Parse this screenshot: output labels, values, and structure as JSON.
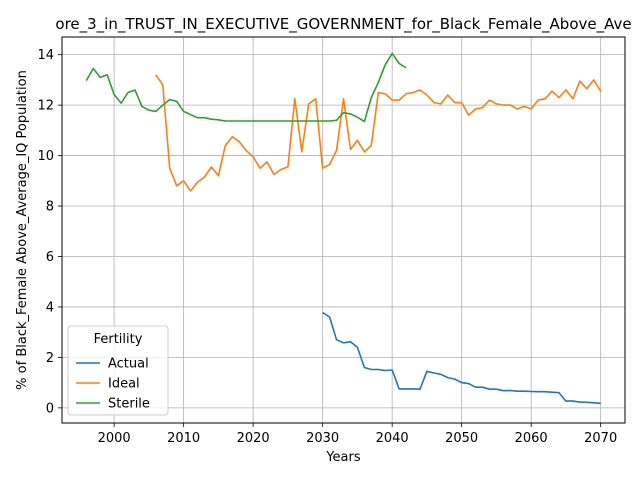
{
  "chart_data": {
    "type": "line",
    "title": "ore_3_in_TRUST_IN_EXECUTIVE_GOVERNMENT_for_Black_Female_Above_Ave",
    "xlabel": "Years",
    "ylabel": "% of Black_Female Above_Average_IQ Population",
    "xlim": [
      1992.5,
      2073.5
    ],
    "ylim": [
      -0.6,
      14.7
    ],
    "xticks": [
      2000,
      2010,
      2020,
      2030,
      2040,
      2050,
      2060,
      2070
    ],
    "yticks": [
      0,
      2,
      4,
      6,
      8,
      10,
      12,
      14
    ],
    "grid": true,
    "legend": {
      "title": "Fertility",
      "placement": "lower-left"
    },
    "colors": {
      "Actual": "#1f77b4",
      "Ideal": "#ff7f0e",
      "Sterile": "#2ca02c"
    },
    "series": [
      {
        "name": "Actual",
        "x": [
          2030,
          2031,
          2032,
          2033,
          2034,
          2035,
          2036,
          2037,
          2038,
          2039,
          2040,
          2041,
          2042,
          2043,
          2044,
          2045,
          2046,
          2047,
          2048,
          2049,
          2050,
          2051,
          2052,
          2053,
          2054,
          2055,
          2056,
          2057,
          2058,
          2059,
          2060,
          2061,
          2062,
          2063,
          2064,
          2065,
          2066,
          2067,
          2068,
          2069,
          2070
        ],
        "values": [
          3.78,
          3.6,
          2.7,
          2.58,
          2.62,
          2.4,
          1.6,
          1.52,
          1.52,
          1.48,
          1.5,
          0.75,
          0.75,
          0.75,
          0.74,
          1.45,
          1.38,
          1.33,
          1.2,
          1.14,
          1.0,
          0.96,
          0.82,
          0.82,
          0.74,
          0.74,
          0.68,
          0.69,
          0.66,
          0.66,
          0.65,
          0.64,
          0.64,
          0.62,
          0.6,
          0.27,
          0.27,
          0.23,
          0.22,
          0.2,
          0.18
        ]
      },
      {
        "name": "Ideal",
        "x": [
          2006,
          2007,
          2008,
          2009,
          2010,
          2011,
          2012,
          2013,
          2014,
          2015,
          2016,
          2017,
          2018,
          2019,
          2020,
          2021,
          2022,
          2023,
          2024,
          2025,
          2026,
          2027,
          2028,
          2029,
          2030,
          2031,
          2032,
          2033,
          2034,
          2035,
          2036,
          2037,
          2038,
          2039,
          2040,
          2041,
          2042,
          2043,
          2044,
          2045,
          2046,
          2047,
          2048,
          2049,
          2050,
          2051,
          2052,
          2053,
          2054,
          2055,
          2056,
          2057,
          2058,
          2059,
          2060,
          2061,
          2062,
          2063,
          2064,
          2065,
          2066,
          2067,
          2068,
          2069,
          2070
        ],
        "values": [
          13.2,
          12.8,
          9.5,
          8.8,
          9.0,
          8.6,
          8.95,
          9.15,
          9.55,
          9.2,
          10.4,
          10.75,
          10.55,
          10.2,
          9.95,
          9.5,
          9.75,
          9.25,
          9.45,
          9.55,
          12.25,
          10.15,
          12.05,
          12.25,
          9.5,
          9.65,
          10.2,
          12.25,
          10.25,
          10.6,
          10.15,
          10.4,
          12.5,
          12.45,
          12.2,
          12.2,
          12.45,
          12.5,
          12.6,
          12.4,
          12.1,
          12.05,
          12.4,
          12.1,
          12.1,
          11.6,
          11.85,
          11.9,
          12.2,
          12.05,
          12.0,
          12.0,
          11.85,
          11.95,
          11.85,
          12.2,
          12.25,
          12.55,
          12.3,
          12.6,
          12.25,
          12.95,
          12.65,
          13.0,
          12.55
        ]
      },
      {
        "name": "Sterile",
        "x": [
          1996,
          1997,
          1998,
          1999,
          2000,
          2001,
          2002,
          2003,
          2004,
          2005,
          2006,
          2007,
          2008,
          2009,
          2010,
          2011,
          2012,
          2013,
          2014,
          2015,
          2016,
          2017,
          2018,
          2019,
          2020,
          2021,
          2022,
          2023,
          2024,
          2025,
          2026,
          2027,
          2028,
          2029,
          2030,
          2031,
          2032,
          2033,
          2034,
          2035,
          2036,
          2037,
          2038,
          2039,
          2040,
          2041,
          2042
        ],
        "values": [
          12.97,
          13.45,
          13.1,
          13.2,
          12.42,
          12.08,
          12.5,
          12.6,
          11.95,
          11.8,
          11.75,
          12.0,
          12.22,
          12.15,
          11.75,
          11.62,
          11.5,
          11.5,
          11.44,
          11.42,
          11.37,
          11.37,
          11.37,
          11.37,
          11.37,
          11.37,
          11.37,
          11.37,
          11.37,
          11.37,
          11.37,
          11.37,
          11.37,
          11.37,
          11.37,
          11.37,
          11.4,
          11.7,
          11.65,
          11.52,
          11.35,
          12.3,
          12.9,
          13.6,
          14.05,
          13.65,
          13.48
        ]
      }
    ]
  }
}
